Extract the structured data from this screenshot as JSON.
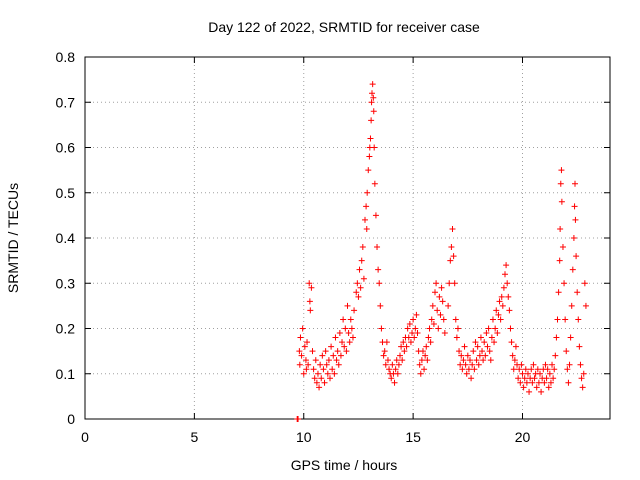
{
  "chart_data": {
    "type": "scatter",
    "title": "Day 122 of 2022, SRMTID for receiver case",
    "xlabel": "GPS time / hours",
    "ylabel": "SRMTID / TECUs",
    "xlim": [
      0,
      24
    ],
    "ylim": [
      0,
      0.8
    ],
    "xticks": [
      0,
      5,
      10,
      15,
      20
    ],
    "yticks": [
      0,
      0.1,
      0.2,
      0.3,
      0.4,
      0.5,
      0.6,
      0.7,
      0.8
    ],
    "grid": true,
    "marker": "+",
    "color": "#ff0000",
    "series": [
      {
        "name": "SRMTID",
        "points": [
          [
            9.7,
            0.0
          ],
          [
            9.72,
            0.0
          ],
          [
            9.74,
            0.0
          ],
          [
            9.8,
            0.15
          ],
          [
            9.82,
            0.12
          ],
          [
            9.85,
            0.18
          ],
          [
            9.9,
            0.14
          ],
          [
            9.95,
            0.2
          ],
          [
            10.0,
            0.1
          ],
          [
            10.05,
            0.16
          ],
          [
            10.1,
            0.13
          ],
          [
            10.12,
            0.11
          ],
          [
            10.15,
            0.17
          ],
          [
            10.2,
            0.12
          ],
          [
            10.25,
            0.3
          ],
          [
            10.28,
            0.26
          ],
          [
            10.3,
            0.24
          ],
          [
            10.35,
            0.29
          ],
          [
            10.4,
            0.15
          ],
          [
            10.45,
            0.11
          ],
          [
            10.5,
            0.09
          ],
          [
            10.55,
            0.13
          ],
          [
            10.6,
            0.08
          ],
          [
            10.65,
            0.1
          ],
          [
            10.7,
            0.07
          ],
          [
            10.75,
            0.12
          ],
          [
            10.8,
            0.09
          ],
          [
            10.85,
            0.14
          ],
          [
            10.9,
            0.11
          ],
          [
            10.95,
            0.08
          ],
          [
            11.0,
            0.15
          ],
          [
            11.05,
            0.12
          ],
          [
            11.1,
            0.1
          ],
          [
            11.15,
            0.13
          ],
          [
            11.2,
            0.09
          ],
          [
            11.25,
            0.16
          ],
          [
            11.3,
            0.11
          ],
          [
            11.35,
            0.14
          ],
          [
            11.4,
            0.1
          ],
          [
            11.45,
            0.18
          ],
          [
            11.5,
            0.13
          ],
          [
            11.55,
            0.15
          ],
          [
            11.6,
            0.12
          ],
          [
            11.65,
            0.19
          ],
          [
            11.7,
            0.14
          ],
          [
            11.75,
            0.17
          ],
          [
            11.8,
            0.22
          ],
          [
            11.85,
            0.16
          ],
          [
            11.9,
            0.2
          ],
          [
            11.95,
            0.15
          ],
          [
            12.0,
            0.25
          ],
          [
            12.05,
            0.19
          ],
          [
            12.1,
            0.17
          ],
          [
            12.15,
            0.22
          ],
          [
            12.2,
            0.2
          ],
          [
            12.25,
            0.18
          ],
          [
            12.3,
            0.24
          ],
          [
            12.4,
            0.28
          ],
          [
            12.45,
            0.3
          ],
          [
            12.5,
            0.27
          ],
          [
            12.55,
            0.33
          ],
          [
            12.6,
            0.29
          ],
          [
            12.65,
            0.35
          ],
          [
            12.7,
            0.38
          ],
          [
            12.75,
            0.31
          ],
          [
            12.8,
            0.44
          ],
          [
            12.85,
            0.47
          ],
          [
            12.88,
            0.42
          ],
          [
            12.9,
            0.5
          ],
          [
            12.95,
            0.55
          ],
          [
            13.0,
            0.58
          ],
          [
            13.02,
            0.6
          ],
          [
            13.05,
            0.62
          ],
          [
            13.08,
            0.66
          ],
          [
            13.1,
            0.7
          ],
          [
            13.12,
            0.72
          ],
          [
            13.15,
            0.74
          ],
          [
            13.18,
            0.71
          ],
          [
            13.2,
            0.68
          ],
          [
            13.22,
            0.6
          ],
          [
            13.25,
            0.52
          ],
          [
            13.3,
            0.45
          ],
          [
            13.35,
            0.38
          ],
          [
            13.4,
            0.33
          ],
          [
            13.45,
            0.3
          ],
          [
            13.5,
            0.25
          ],
          [
            13.55,
            0.2
          ],
          [
            13.6,
            0.17
          ],
          [
            13.65,
            0.14
          ],
          [
            13.7,
            0.15
          ],
          [
            13.75,
            0.12
          ],
          [
            13.8,
            0.17
          ],
          [
            13.85,
            0.13
          ],
          [
            13.9,
            0.11
          ],
          [
            13.95,
            0.1
          ],
          [
            14.0,
            0.09
          ],
          [
            14.05,
            0.12
          ],
          [
            14.1,
            0.1
          ],
          [
            14.15,
            0.08
          ],
          [
            14.2,
            0.11
          ],
          [
            14.25,
            0.13
          ],
          [
            14.3,
            0.1
          ],
          [
            14.35,
            0.12
          ],
          [
            14.4,
            0.14
          ],
          [
            14.45,
            0.16
          ],
          [
            14.5,
            0.13
          ],
          [
            14.55,
            0.17
          ],
          [
            14.6,
            0.15
          ],
          [
            14.65,
            0.18
          ],
          [
            14.7,
            0.16
          ],
          [
            14.75,
            0.2
          ],
          [
            14.8,
            0.18
          ],
          [
            14.85,
            0.21
          ],
          [
            14.9,
            0.17
          ],
          [
            14.95,
            0.19
          ],
          [
            15.0,
            0.22
          ],
          [
            15.05,
            0.18
          ],
          [
            15.1,
            0.2
          ],
          [
            15.15,
            0.23
          ],
          [
            15.2,
            0.19
          ],
          [
            15.25,
            0.15
          ],
          [
            15.3,
            0.12
          ],
          [
            15.35,
            0.1
          ],
          [
            15.4,
            0.13
          ],
          [
            15.45,
            0.15
          ],
          [
            15.5,
            0.11
          ],
          [
            15.55,
            0.14
          ],
          [
            15.6,
            0.16
          ],
          [
            15.65,
            0.13
          ],
          [
            15.7,
            0.18
          ],
          [
            15.75,
            0.2
          ],
          [
            15.8,
            0.17
          ],
          [
            15.85,
            0.22
          ],
          [
            15.9,
            0.25
          ],
          [
            15.95,
            0.21
          ],
          [
            16.0,
            0.28
          ],
          [
            16.05,
            0.3
          ],
          [
            16.1,
            0.24
          ],
          [
            16.15,
            0.2
          ],
          [
            16.2,
            0.27
          ],
          [
            16.25,
            0.23
          ],
          [
            16.3,
            0.29
          ],
          [
            16.35,
            0.26
          ],
          [
            16.4,
            0.22
          ],
          [
            16.45,
            0.19
          ],
          [
            16.6,
            0.25
          ],
          [
            16.65,
            0.3
          ],
          [
            16.7,
            0.35
          ],
          [
            16.75,
            0.38
          ],
          [
            16.8,
            0.42
          ],
          [
            16.85,
            0.36
          ],
          [
            16.9,
            0.3
          ],
          [
            16.95,
            0.22
          ],
          [
            17.0,
            0.18
          ],
          [
            17.05,
            0.2
          ],
          [
            17.1,
            0.15
          ],
          [
            17.15,
            0.12
          ],
          [
            17.2,
            0.14
          ],
          [
            17.25,
            0.11
          ],
          [
            17.3,
            0.13
          ],
          [
            17.35,
            0.16
          ],
          [
            17.4,
            0.12
          ],
          [
            17.45,
            0.1
          ],
          [
            17.5,
            0.14
          ],
          [
            17.55,
            0.11
          ],
          [
            17.6,
            0.13
          ],
          [
            17.65,
            0.09
          ],
          [
            17.7,
            0.12
          ],
          [
            17.75,
            0.15
          ],
          [
            17.8,
            0.11
          ],
          [
            17.85,
            0.17
          ],
          [
            17.9,
            0.13
          ],
          [
            17.95,
            0.16
          ],
          [
            18.0,
            0.12
          ],
          [
            18.05,
            0.14
          ],
          [
            18.1,
            0.18
          ],
          [
            18.15,
            0.15
          ],
          [
            18.2,
            0.13
          ],
          [
            18.25,
            0.17
          ],
          [
            18.3,
            0.14
          ],
          [
            18.35,
            0.19
          ],
          [
            18.4,
            0.16
          ],
          [
            18.45,
            0.2
          ],
          [
            18.5,
            0.15
          ],
          [
            18.55,
            0.13
          ],
          [
            18.6,
            0.18
          ],
          [
            18.65,
            0.22
          ],
          [
            18.7,
            0.17
          ],
          [
            18.75,
            0.2
          ],
          [
            18.8,
            0.24
          ],
          [
            18.85,
            0.19
          ],
          [
            18.9,
            0.23
          ],
          [
            18.95,
            0.26
          ],
          [
            19.0,
            0.22
          ],
          [
            19.05,
            0.27
          ],
          [
            19.1,
            0.25
          ],
          [
            19.15,
            0.29
          ],
          [
            19.2,
            0.32
          ],
          [
            19.25,
            0.34
          ],
          [
            19.3,
            0.3
          ],
          [
            19.35,
            0.27
          ],
          [
            19.4,
            0.24
          ],
          [
            19.45,
            0.2
          ],
          [
            19.5,
            0.17
          ],
          [
            19.55,
            0.14
          ],
          [
            19.6,
            0.11
          ],
          [
            19.65,
            0.13
          ],
          [
            19.7,
            0.16
          ],
          [
            19.75,
            0.12
          ],
          [
            19.8,
            0.09
          ],
          [
            19.85,
            0.11
          ],
          [
            19.9,
            0.08
          ],
          [
            19.95,
            0.12
          ],
          [
            20.0,
            0.1
          ],
          [
            20.05,
            0.07
          ],
          [
            20.1,
            0.09
          ],
          [
            20.15,
            0.11
          ],
          [
            20.2,
            0.08
          ],
          [
            20.25,
            0.1
          ],
          [
            20.3,
            0.06
          ],
          [
            20.35,
            0.09
          ],
          [
            20.4,
            0.11
          ],
          [
            20.45,
            0.08
          ],
          [
            20.5,
            0.12
          ],
          [
            20.55,
            0.09
          ],
          [
            20.6,
            0.1
          ],
          [
            20.65,
            0.07
          ],
          [
            20.7,
            0.11
          ],
          [
            20.75,
            0.08
          ],
          [
            20.8,
            0.1
          ],
          [
            20.85,
            0.06
          ],
          [
            20.9,
            0.09
          ],
          [
            20.95,
            0.11
          ],
          [
            21.0,
            0.08
          ],
          [
            21.05,
            0.12
          ],
          [
            21.1,
            0.09
          ],
          [
            21.15,
            0.11
          ],
          [
            21.2,
            0.07
          ],
          [
            21.25,
            0.1
          ],
          [
            21.3,
            0.08
          ],
          [
            21.35,
            0.12
          ],
          [
            21.4,
            0.09
          ],
          [
            21.45,
            0.11
          ],
          [
            21.5,
            0.14
          ],
          [
            21.55,
            0.18
          ],
          [
            21.6,
            0.22
          ],
          [
            21.65,
            0.28
          ],
          [
            21.7,
            0.35
          ],
          [
            21.72,
            0.42
          ],
          [
            21.75,
            0.52
          ],
          [
            21.78,
            0.55
          ],
          [
            21.8,
            0.48
          ],
          [
            21.85,
            0.38
          ],
          [
            21.9,
            0.3
          ],
          [
            21.95,
            0.22
          ],
          [
            22.0,
            0.15
          ],
          [
            22.05,
            0.11
          ],
          [
            22.1,
            0.08
          ],
          [
            22.15,
            0.12
          ],
          [
            22.2,
            0.18
          ],
          [
            22.25,
            0.25
          ],
          [
            22.3,
            0.33
          ],
          [
            22.35,
            0.4
          ],
          [
            22.38,
            0.47
          ],
          [
            22.4,
            0.52
          ],
          [
            22.42,
            0.44
          ],
          [
            22.45,
            0.36
          ],
          [
            22.5,
            0.28
          ],
          [
            22.55,
            0.22
          ],
          [
            22.6,
            0.16
          ],
          [
            22.65,
            0.12
          ],
          [
            22.7,
            0.09
          ],
          [
            22.75,
            0.07
          ],
          [
            22.8,
            0.1
          ],
          [
            22.85,
            0.3
          ],
          [
            22.9,
            0.25
          ]
        ]
      }
    ]
  }
}
